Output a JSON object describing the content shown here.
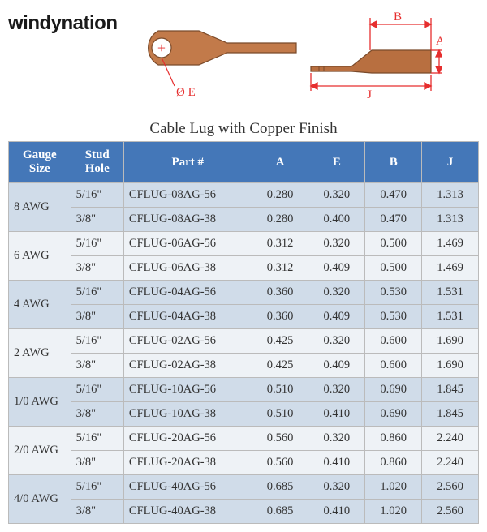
{
  "brand": "windynation",
  "title": "Cable Lug with Copper Finish",
  "diagram": {
    "stroke": "#e62e2e",
    "fill_top": "#c27a4a",
    "fill_side": "#b86f40",
    "label_A": "A",
    "label_B": "B",
    "label_J": "J",
    "label_E": "Ø E",
    "center_mark": "+"
  },
  "columns": [
    "Gauge Size",
    "Stud Hole",
    "Part #",
    "A",
    "E",
    "B",
    "J"
  ],
  "groups": [
    {
      "gauge": "8 AWG",
      "band": "a",
      "rows": [
        {
          "stud": "5/16\"",
          "part": "CFLUG-08AG-56",
          "A": "0.280",
          "E": "0.320",
          "B": "0.470",
          "J": "1.313"
        },
        {
          "stud": "3/8\"",
          "part": "CFLUG-08AG-38",
          "A": "0.280",
          "E": "0.400",
          "B": "0.470",
          "J": "1.313"
        }
      ]
    },
    {
      "gauge": "6 AWG",
      "band": "b",
      "rows": [
        {
          "stud": "5/16\"",
          "part": "CFLUG-06AG-56",
          "A": "0.312",
          "E": "0.320",
          "B": "0.500",
          "J": "1.469"
        },
        {
          "stud": "3/8\"",
          "part": "CFLUG-06AG-38",
          "A": "0.312",
          "E": "0.409",
          "B": "0.500",
          "J": "1.469"
        }
      ]
    },
    {
      "gauge": "4 AWG",
      "band": "a",
      "rows": [
        {
          "stud": "5/16\"",
          "part": "CFLUG-04AG-56",
          "A": "0.360",
          "E": "0.320",
          "B": "0.530",
          "J": "1.531"
        },
        {
          "stud": "3/8\"",
          "part": "CFLUG-04AG-38",
          "A": "0.360",
          "E": "0.409",
          "B": "0.530",
          "J": "1.531"
        }
      ]
    },
    {
      "gauge": "2 AWG",
      "band": "b",
      "rows": [
        {
          "stud": "5/16\"",
          "part": "CFLUG-02AG-56",
          "A": "0.425",
          "E": "0.320",
          "B": "0.600",
          "J": "1.690"
        },
        {
          "stud": "3/8\"",
          "part": "CFLUG-02AG-38",
          "A": "0.425",
          "E": "0.409",
          "B": "0.600",
          "J": "1.690"
        }
      ]
    },
    {
      "gauge": "1/0 AWG",
      "band": "a",
      "rows": [
        {
          "stud": "5/16\"",
          "part": "CFLUG-10AG-56",
          "A": "0.510",
          "E": "0.320",
          "B": "0.690",
          "J": "1.845"
        },
        {
          "stud": "3/8\"",
          "part": "CFLUG-10AG-38",
          "A": "0.510",
          "E": "0.410",
          "B": "0.690",
          "J": "1.845"
        }
      ]
    },
    {
      "gauge": "2/0 AWG",
      "band": "b",
      "rows": [
        {
          "stud": "5/16\"",
          "part": "CFLUG-20AG-56",
          "A": "0.560",
          "E": "0.320",
          "B": "0.860",
          "J": "2.240"
        },
        {
          "stud": "3/8\"",
          "part": "CFLUG-20AG-38",
          "A": "0.560",
          "E": "0.410",
          "B": "0.860",
          "J": "2.240"
        }
      ]
    },
    {
      "gauge": "4/0 AWG",
      "band": "a",
      "rows": [
        {
          "stud": "5/16\"",
          "part": "CFLUG-40AG-56",
          "A": "0.685",
          "E": "0.320",
          "B": "1.020",
          "J": "2.560"
        },
        {
          "stud": "3/8\"",
          "part": "CFLUG-40AG-38",
          "A": "0.685",
          "E": "0.410",
          "B": "1.020",
          "J": "2.560"
        }
      ]
    }
  ]
}
